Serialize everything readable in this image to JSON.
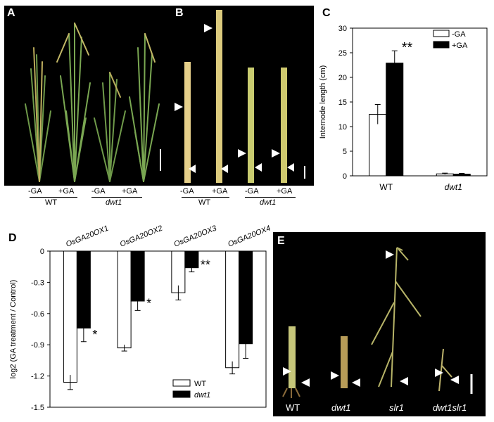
{
  "panels": {
    "A": {
      "label": "A",
      "treatments": [
        "-GA",
        "+GA",
        "-GA",
        "+GA"
      ],
      "groups": [
        "WT",
        "dwt1"
      ]
    },
    "B": {
      "label": "B",
      "treatments": [
        "-GA",
        "+GA",
        "-GA",
        "+GA"
      ],
      "groups": [
        "WT",
        "dwt1"
      ]
    },
    "C": {
      "label": "C"
    },
    "D": {
      "label": "D"
    },
    "E": {
      "label": "E",
      "samples": [
        "WT",
        "dwt1",
        "slr1",
        "dwt1slr1"
      ]
    }
  },
  "chart_data": [
    {
      "panel": "C",
      "type": "bar",
      "ylabel": "Internode length (cm)",
      "categories": [
        "WT",
        "dwt1"
      ],
      "series": [
        {
          "name": "-GA",
          "values": [
            12.5,
            0.4
          ],
          "errors": [
            2.0,
            0.15
          ],
          "color": "#ffffff"
        },
        {
          "name": "+GA",
          "values": [
            22.9,
            0.35
          ],
          "errors": [
            2.5,
            0.15
          ],
          "color": "#000000"
        }
      ],
      "ylim": [
        0,
        30
      ],
      "yticks": [
        0,
        5,
        10,
        15,
        20,
        25,
        30
      ],
      "significance": [
        {
          "category": "WT",
          "label": "**"
        }
      ],
      "legend": "top-right"
    },
    {
      "panel": "D",
      "type": "bar",
      "ylabel": "log2 (GA treatment / Control)",
      "categories": [
        "OsGA20OX1",
        "OsGA20OX2",
        "OsGA20OX3",
        "OsGA20OX4"
      ],
      "series": [
        {
          "name": "WT",
          "values": [
            -1.26,
            -0.93,
            -0.4,
            -1.12
          ],
          "errors": [
            0.07,
            0.03,
            0.07,
            0.06
          ],
          "color": "#ffffff"
        },
        {
          "name": "dwt1",
          "values": [
            -0.74,
            -0.48,
            -0.16,
            -0.89
          ],
          "errors": [
            0.13,
            0.09,
            0.04,
            0.14
          ],
          "color": "#000000"
        }
      ],
      "ylim": [
        -1.5,
        0
      ],
      "yticks": [
        "0",
        "-0.3",
        "-0.6",
        "-0.9",
        "-1.2",
        "-1.5"
      ],
      "significance": [
        {
          "category": "OsGA20OX1",
          "label": "*"
        },
        {
          "category": "OsGA20OX2",
          "label": "*"
        },
        {
          "category": "OsGA20OX3",
          "label": "**"
        }
      ],
      "legend": "bottom-right"
    }
  ]
}
